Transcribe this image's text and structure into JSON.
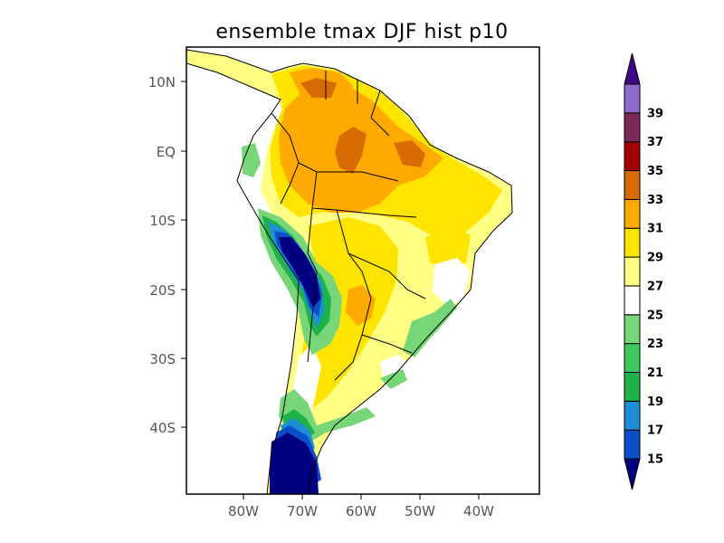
{
  "title": "ensemble tmax DJF hist p10",
  "axes": {
    "x_ticks": [
      "80W",
      "70W",
      "60W",
      "50W",
      "40W"
    ],
    "y_ticks": [
      "10N",
      "EQ",
      "10S",
      "20S",
      "30S",
      "40S"
    ]
  },
  "colorbar": {
    "labels": [
      "15",
      "17",
      "19",
      "21",
      "23",
      "25",
      "27",
      "29",
      "31",
      "33",
      "35",
      "37",
      "39"
    ],
    "colors": [
      "#000080",
      "#0a4fc8",
      "#1d8fd6",
      "#1db24a",
      "#3fc85a",
      "#77d677",
      "#ffffff",
      "#ffff84",
      "#ffe400",
      "#ffaa00",
      "#d86b00",
      "#a50000",
      "#7b2a5a",
      "#8f6ccc",
      "#3c0a86"
    ]
  },
  "colors": {
    "land_base": "#ffff84",
    "cold_core": "#000080"
  }
}
